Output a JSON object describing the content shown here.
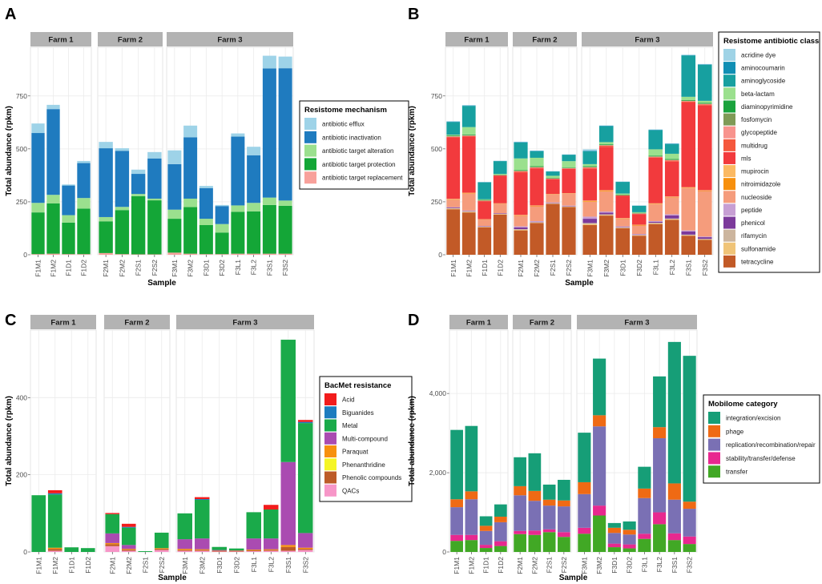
{
  "figure": {
    "x_axis_label": "Sample",
    "y_axis_label": "Total abundance (rpkm)"
  },
  "chart_data": [
    {
      "panel_label": "A",
      "type": "bar",
      "stacked": true,
      "facets": [
        {
          "title": "Farm 1",
          "categories": [
            "F1M1",
            "F1M2",
            "F1D1",
            "F1D2"
          ]
        },
        {
          "title": "Farm 2",
          "categories": [
            "F2M1",
            "F2M2",
            "F2S1",
            "F2S2"
          ]
        },
        {
          "title": "Farm 3",
          "categories": [
            "F3M1",
            "F3M2",
            "F3D1",
            "F3D2",
            "F3L1",
            "F3L2",
            "F3S1",
            "F3S2"
          ]
        }
      ],
      "ylim": [
        0,
        980
      ],
      "yticks": [
        0,
        250,
        500,
        750
      ],
      "legend": {
        "title": "Resistome mechanism",
        "position": "right"
      },
      "series": [
        {
          "name": "antibiotic target replacement",
          "color": "#f8a19b",
          "values": [
            3,
            5,
            3,
            3,
            8,
            3,
            2,
            2,
            10,
            5,
            3,
            3,
            5,
            5,
            5,
            5
          ]
        },
        {
          "name": "antibiotic target protection",
          "color": "#14a637",
          "values": [
            197,
            238,
            149,
            215,
            150,
            208,
            275,
            255,
            160,
            220,
            137,
            102,
            198,
            200,
            230,
            226
          ]
        },
        {
          "name": "antibiotic target alteration",
          "color": "#9be08e",
          "values": [
            45,
            40,
            35,
            50,
            20,
            15,
            10,
            8,
            43,
            40,
            30,
            40,
            30,
            40,
            35,
            25
          ]
        },
        {
          "name": "antibiotic inactivation",
          "color": "#1f7bbf",
          "values": [
            330,
            405,
            140,
            165,
            325,
            265,
            95,
            190,
            215,
            290,
            145,
            85,
            325,
            225,
            610,
            625
          ]
        },
        {
          "name": "antibiotic efflux",
          "color": "#9ed3e8",
          "values": [
            45,
            20,
            5,
            10,
            30,
            12,
            20,
            30,
            65,
            55,
            10,
            5,
            15,
            40,
            60,
            55
          ]
        }
      ]
    },
    {
      "panel_label": "B",
      "type": "bar",
      "stacked": true,
      "facets": [
        {
          "title": "Farm 1",
          "categories": [
            "F1M1",
            "F1M2",
            "F1D1",
            "F1D2"
          ]
        },
        {
          "title": "Farm 2",
          "categories": [
            "F2M1",
            "F2M2",
            "F2S1",
            "F2S2"
          ]
        },
        {
          "title": "Farm 3",
          "categories": [
            "F3M1",
            "F3M2",
            "F3D1",
            "F3D2",
            "F3L1",
            "F3L2",
            "F3S1",
            "F3S2"
          ]
        }
      ],
      "ylim": [
        0,
        980
      ],
      "yticks": [
        0,
        250,
        500,
        750
      ],
      "legend": {
        "title": "Resistome antibiotic class",
        "position": "right"
      },
      "series": [
        {
          "name": "tetracycline",
          "color": "#c25a27",
          "values": [
            215,
            200,
            130,
            190,
            115,
            150,
            240,
            225,
            140,
            185,
            125,
            90,
            145,
            165,
            90,
            70
          ]
        },
        {
          "name": "sulfonamide",
          "color": "#f0c478",
          "values": [
            3,
            3,
            2,
            2,
            3,
            2,
            2,
            2,
            5,
            3,
            2,
            2,
            3,
            3,
            2,
            2
          ]
        },
        {
          "name": "rifamycin",
          "color": "#ccb59e",
          "values": [
            2,
            2,
            1,
            1,
            3,
            2,
            1,
            1,
            5,
            3,
            2,
            2,
            3,
            3,
            3,
            3
          ]
        },
        {
          "name": "phenicol",
          "color": "#7c3a9b",
          "values": [
            3,
            2,
            2,
            2,
            8,
            2,
            2,
            2,
            20,
            8,
            2,
            2,
            5,
            15,
            15,
            8
          ]
        },
        {
          "name": "peptide",
          "color": "#c79fd4",
          "values": [
            2,
            2,
            1,
            1,
            5,
            3,
            2,
            2,
            10,
            5,
            3,
            2,
            3,
            5,
            5,
            3
          ]
        },
        {
          "name": "nucleoside",
          "color": "#f59c7c",
          "values": [
            35,
            80,
            30,
            45,
            50,
            70,
            38,
            57,
            70,
            95,
            35,
            40,
            80,
            80,
            200,
            215
          ]
        },
        {
          "name": "nitroimidazole",
          "color": "#f7900d",
          "values": [
            2,
            2,
            1,
            1,
            2,
            2,
            1,
            1,
            3,
            3,
            2,
            2,
            2,
            2,
            2,
            2
          ]
        },
        {
          "name": "mupirocin",
          "color": "#fbb962",
          "values": [
            2,
            2,
            1,
            1,
            2,
            2,
            1,
            1,
            3,
            3,
            2,
            2,
            2,
            2,
            2,
            2
          ]
        },
        {
          "name": "mls",
          "color": "#f23a3d",
          "values": [
            290,
            265,
            85,
            130,
            200,
            175,
            70,
            115,
            150,
            205,
            105,
            50,
            215,
            165,
            400,
            400
          ]
        },
        {
          "name": "multidrug",
          "color": "#f5583d",
          "values": [
            3,
            3,
            2,
            2,
            5,
            3,
            2,
            2,
            5,
            5,
            2,
            2,
            3,
            5,
            5,
            5
          ]
        },
        {
          "name": "glycopeptide",
          "color": "#f8938d",
          "values": [
            2,
            2,
            1,
            1,
            2,
            2,
            1,
            1,
            2,
            2,
            1,
            1,
            2,
            2,
            2,
            2
          ]
        },
        {
          "name": "fosfomycin",
          "color": "#7f9a56",
          "values": [
            2,
            2,
            1,
            1,
            2,
            2,
            1,
            1,
            2,
            2,
            1,
            1,
            2,
            2,
            2,
            2
          ]
        },
        {
          "name": "diaminopyrimidine",
          "color": "#1aa33d",
          "values": [
            3,
            3,
            2,
            2,
            3,
            3,
            2,
            2,
            3,
            3,
            2,
            2,
            3,
            3,
            3,
            3
          ]
        },
        {
          "name": "beta-lactam",
          "color": "#9be08e",
          "values": [
            3,
            35,
            3,
            3,
            55,
            40,
            10,
            30,
            10,
            10,
            5,
            3,
            30,
            25,
            15,
            10
          ]
        },
        {
          "name": "aminoglycoside",
          "color": "#17a0a0",
          "values": [
            60,
            100,
            80,
            60,
            75,
            30,
            20,
            30,
            60,
            75,
            55,
            30,
            90,
            45,
            195,
            170
          ]
        },
        {
          "name": "aminocoumarin",
          "color": "#108fb4",
          "values": [
            2,
            2,
            1,
            1,
            2,
            2,
            1,
            1,
            2,
            2,
            1,
            1,
            2,
            2,
            2,
            2
          ]
        },
        {
          "name": "acridine dye",
          "color": "#9fd3e6",
          "values": [
            2,
            2,
            1,
            1,
            2,
            2,
            1,
            1,
            8,
            2,
            1,
            1,
            2,
            2,
            2,
            2
          ]
        }
      ]
    },
    {
      "panel_label": "C",
      "type": "bar",
      "stacked": true,
      "facets": [
        {
          "title": "Farm 1",
          "categories": [
            "F1M1",
            "F1M2",
            "F1D1",
            "F1D2"
          ]
        },
        {
          "title": "Farm 2",
          "categories": [
            "F2M1",
            "F2M2",
            "F2S1",
            "F2S2"
          ]
        },
        {
          "title": "Farm 3",
          "categories": [
            "F3M1",
            "F3M2",
            "F3D1",
            "F3D2",
            "F3L1",
            "F3L2",
            "F3S1",
            "F3S2"
          ]
        }
      ],
      "ylim": [
        0,
        575
      ],
      "yticks": [
        0,
        200,
        400
      ],
      "legend": {
        "title": "BacMet resistance",
        "position": "right"
      },
      "series": [
        {
          "name": "QACs",
          "color": "#f796c8",
          "values": [
            0,
            3,
            0,
            0,
            15,
            3,
            0,
            5,
            3,
            3,
            1,
            1,
            2,
            3,
            3,
            5
          ]
        },
        {
          "name": "Phenolic compounds",
          "color": "#bd5b27",
          "values": [
            0,
            5,
            0,
            0,
            5,
            3,
            0,
            3,
            2,
            2,
            1,
            1,
            2,
            2,
            10,
            3
          ]
        },
        {
          "name": "Phenanthridine",
          "color": "#f5f525",
          "values": [
            0,
            0,
            0,
            0,
            0,
            0,
            0,
            0,
            0,
            0,
            0,
            0,
            0,
            0,
            0,
            0
          ]
        },
        {
          "name": "Paraquat",
          "color": "#f7900d",
          "values": [
            0,
            3,
            0,
            0,
            3,
            2,
            0,
            2,
            3,
            2,
            1,
            1,
            2,
            2,
            5,
            3
          ]
        },
        {
          "name": "Multi-compound",
          "color": "#aa4bb1",
          "values": [
            0,
            0,
            0,
            0,
            25,
            10,
            0,
            0,
            25,
            28,
            2,
            1,
            29,
            28,
            215,
            38
          ]
        },
        {
          "name": "Metal",
          "color": "#1aaa4a",
          "values": [
            147,
            138,
            12,
            10,
            50,
            45,
            2,
            40,
            67,
            100,
            8,
            5,
            68,
            75,
            317,
            285
          ]
        },
        {
          "name": "Biguanides",
          "color": "#1d7cbf",
          "values": [
            0,
            3,
            0,
            0,
            0,
            2,
            0,
            0,
            0,
            2,
            0,
            0,
            0,
            0,
            0,
            3
          ]
        },
        {
          "name": "Acid",
          "color": "#f21c1c",
          "values": [
            0,
            8,
            0,
            0,
            3,
            8,
            0,
            0,
            0,
            5,
            0,
            0,
            0,
            12,
            0,
            5
          ]
        }
      ]
    },
    {
      "panel_label": "D",
      "type": "bar",
      "stacked": true,
      "facets": [
        {
          "title": "Farm 1",
          "categories": [
            "F1M1",
            "F1M2",
            "F1D1",
            "F1D2"
          ]
        },
        {
          "title": "Farm 2",
          "categories": [
            "F2M1",
            "F2M2",
            "F2S1",
            "F2S2"
          ]
        },
        {
          "title": "Farm 3",
          "categories": [
            "F3M1",
            "F3M2",
            "F3D1",
            "F3D2",
            "F3L1",
            "F3L2",
            "F3S1",
            "F3S2"
          ]
        }
      ],
      "ylim": [
        0,
        5600
      ],
      "yticks": [
        0,
        2000,
        4000
      ],
      "legend": {
        "title": "Mobilome category",
        "position": "right"
      },
      "series": [
        {
          "name": "transfer",
          "color": "#41a825",
          "values": [
            280,
            300,
            100,
            150,
            450,
            430,
            500,
            380,
            460,
            920,
            120,
            90,
            330,
            700,
            300,
            200
          ]
        },
        {
          "name": "stability/transfer/defense",
          "color": "#e8288f",
          "values": [
            150,
            130,
            80,
            120,
            80,
            110,
            70,
            120,
            150,
            250,
            90,
            100,
            130,
            300,
            170,
            190
          ]
        },
        {
          "name": "replication/recombination/repair",
          "color": "#7a70b4",
          "values": [
            700,
            900,
            350,
            480,
            900,
            750,
            600,
            650,
            850,
            2000,
            270,
            250,
            900,
            1870,
            850,
            700
          ]
        },
        {
          "name": "phage",
          "color": "#ef6a14",
          "values": [
            200,
            200,
            130,
            140,
            230,
            250,
            150,
            150,
            300,
            280,
            130,
            120,
            240,
            280,
            410,
            180
          ]
        },
        {
          "name": "integration/excision",
          "color": "#169e77",
          "values": [
            1750,
            1650,
            240,
            310,
            730,
            950,
            380,
            520,
            1250,
            1430,
            120,
            210,
            550,
            1280,
            3570,
            3680
          ]
        }
      ]
    }
  ]
}
